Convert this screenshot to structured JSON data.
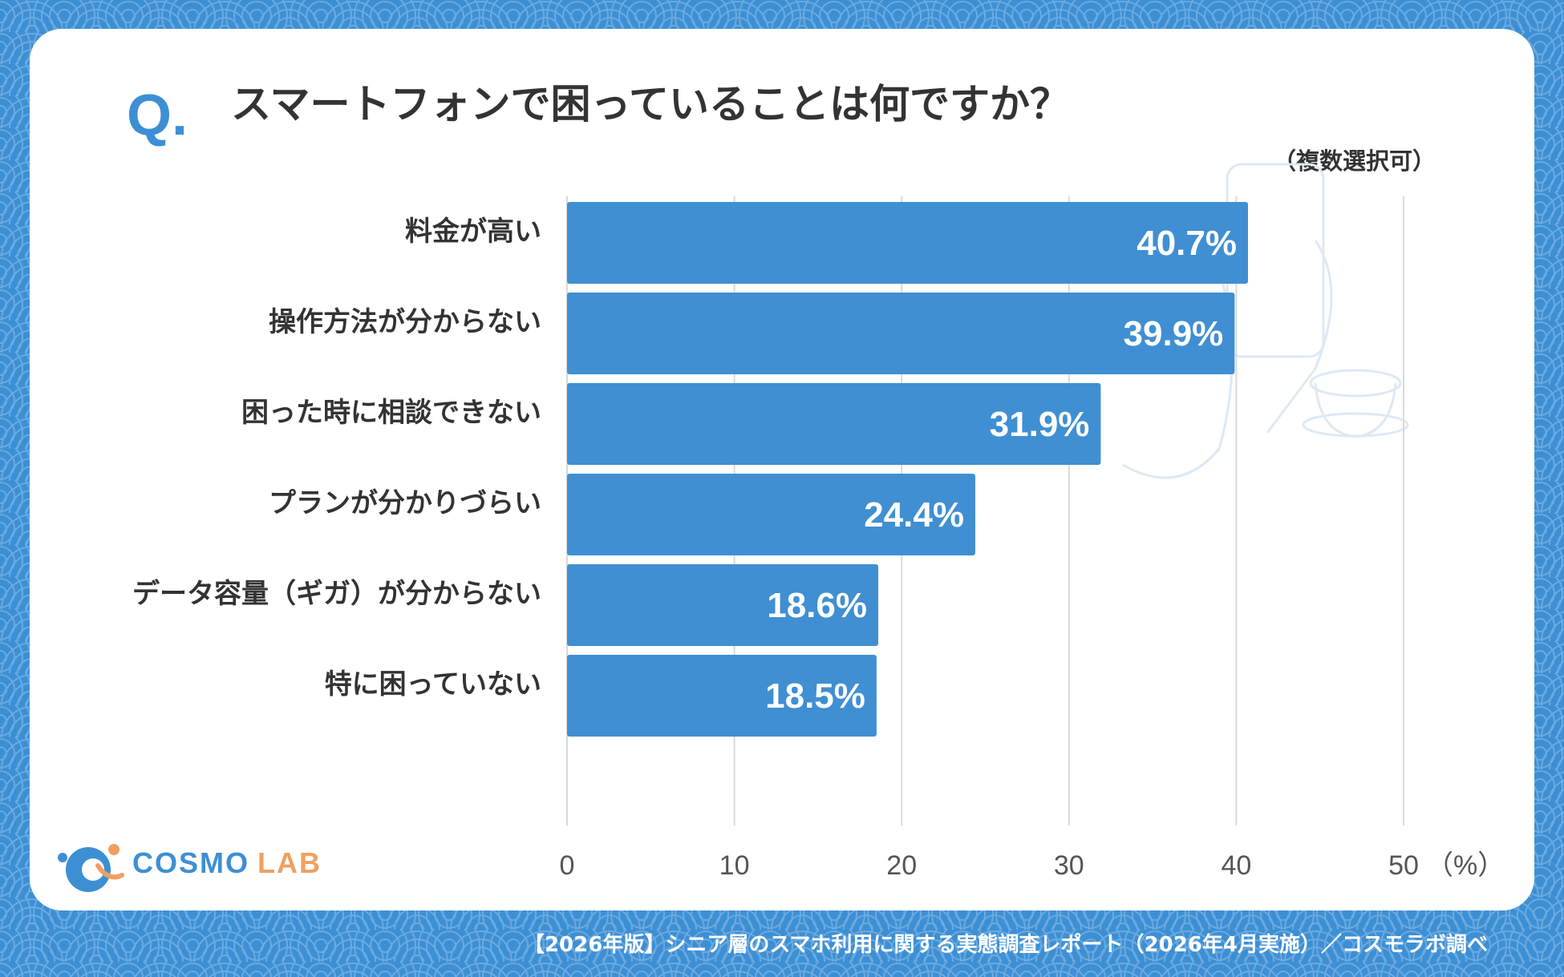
{
  "header": {
    "q_mark": "Q.",
    "title": "スマートフォンで困っていることは何ですか？",
    "note": "（複数選択可）"
  },
  "colors": {
    "background": "#3d8fd4",
    "bar": "#3f8fd2",
    "card": "#ffffff",
    "text": "#333333",
    "logo_primary": "#3d8fd4",
    "logo_secondary": "#f0a060"
  },
  "chart_data": {
    "type": "bar",
    "orientation": "horizontal",
    "categories": [
      "料金が高い",
      "操作方法が分からない",
      "困った時に相談できない",
      "プランが分かりづらい",
      "データ容量（ギガ）が分からない",
      "特に困っていない"
    ],
    "values": [
      40.7,
      39.9,
      31.9,
      24.4,
      18.6,
      18.5
    ],
    "value_labels": [
      "40.7%",
      "39.9%",
      "31.9%",
      "24.4%",
      "18.6%",
      "18.5%"
    ],
    "xlim": [
      0,
      50
    ],
    "ticks": [
      0,
      10,
      20,
      30,
      40,
      50
    ],
    "tick_labels": [
      "0",
      "10",
      "20",
      "30",
      "40",
      "50"
    ],
    "unit_label": "（%）",
    "grid": true
  },
  "logo": {
    "name_primary": "COSMO",
    "name_secondary": "LAB"
  },
  "footer": {
    "source": "【2026年版】シニア層のスマホ利用に関する実態調査レポート（2026年4月実施）／コスモラボ調べ"
  }
}
